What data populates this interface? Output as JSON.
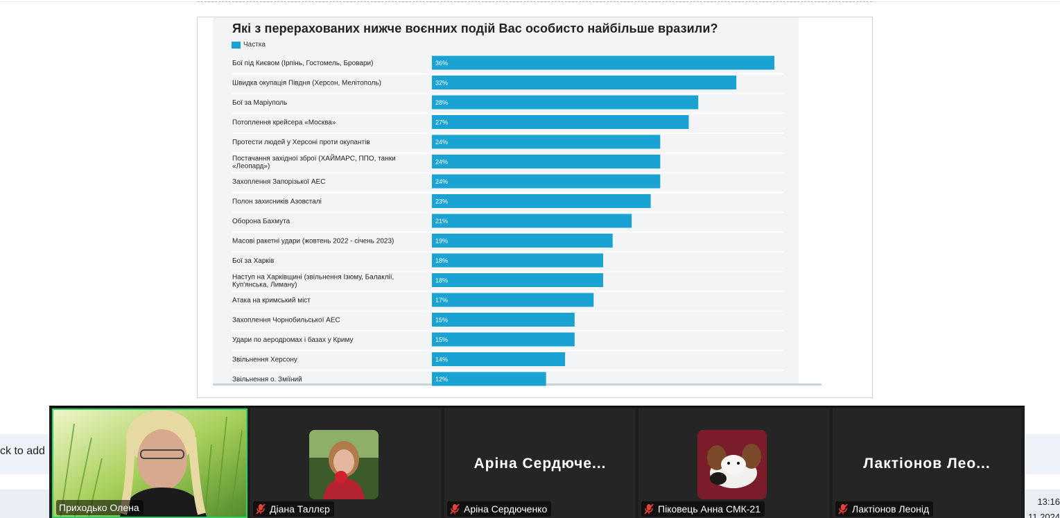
{
  "slide": {
    "chart_title": "Які з перерахованих нижче воєнних подій Вас особисто найбільше вразили?",
    "legend_label": "Частка"
  },
  "chart_data": {
    "type": "bar",
    "orientation": "horizontal",
    "title": "Які з перерахованих нижче воєнних подій Вас особисто найбільше вразили?",
    "series": [
      {
        "name": "Частка",
        "color": "#1aa3d2"
      }
    ],
    "categories": [
      [
        "Бої під Києвом (Ірпінь, Гостомель, Бровари)"
      ],
      [
        "Швидка окупація Півдня (Херсон, Мелітополь)"
      ],
      [
        "Бої за Маріуполь"
      ],
      [
        "Потоплення  крейсера «Москва»"
      ],
      [
        "Протести людей у Херсоні проти окупантів"
      ],
      [
        "Постачання західної зброї (ХАЙМАРС, ППО, танки",
        "«Леопард»)"
      ],
      [
        "Захоплення Запорізької АЕС"
      ],
      [
        "Полон захисників Азовсталі"
      ],
      [
        "Оборона  Бахмута"
      ],
      [
        "Масові ракетні удари (жовтень 2022 - січень 2023)"
      ],
      [
        "Бої за Харків"
      ],
      [
        "Наступ на Харківщині (звільнення Ізюму, Балаклії,",
        "Куп'янська, Лиману)"
      ],
      [
        "Атака на кримський міст"
      ],
      [
        "Захоплення Чорнобильської АЕС"
      ],
      [
        "Удари по аеродромах і базах у Криму"
      ],
      [
        "Звільнення Херсону"
      ],
      [
        "Звільнення о. Зміїний"
      ]
    ],
    "values": [
      36,
      32,
      28,
      27,
      24,
      24,
      24,
      23,
      21,
      19,
      18,
      18,
      17,
      15,
      15,
      14,
      12
    ],
    "value_labels": [
      "36%",
      "32%",
      "28%",
      "27%",
      "24%",
      "24%",
      "24%",
      "23%",
      "21%",
      "19%",
      "18%",
      "18%",
      "17%",
      "15%",
      "15%",
      "14%",
      "12%"
    ],
    "xlim": [
      0,
      36
    ],
    "grid": false,
    "legend_position": "top-left"
  },
  "notes": {
    "text": "ck to add"
  },
  "clock": {
    "time": "13:16",
    "date": "11.2024"
  },
  "participants": [
    {
      "name": "Приходько Олена",
      "video": true,
      "muted": false
    },
    {
      "name": "Діана Таллєр",
      "video": false,
      "muted": true,
      "avatar_icon": "avatar-photo-icon"
    },
    {
      "name": "Аріна Сердюченко",
      "display_name": "Аріна  Сердюче...",
      "video": false,
      "muted": true
    },
    {
      "name": "Піковець Анна СМК-21",
      "video": false,
      "muted": true,
      "avatar_icon": "dog-photo-icon"
    },
    {
      "name": "Лактіонов Леонід",
      "display_name": "Лактіонов  Лео...",
      "video": false,
      "muted": true
    }
  ],
  "colors": {
    "bar": "#1aa3d2",
    "active_speaker_border": "#2ecf6a",
    "muted_mic": "#e8413a"
  }
}
